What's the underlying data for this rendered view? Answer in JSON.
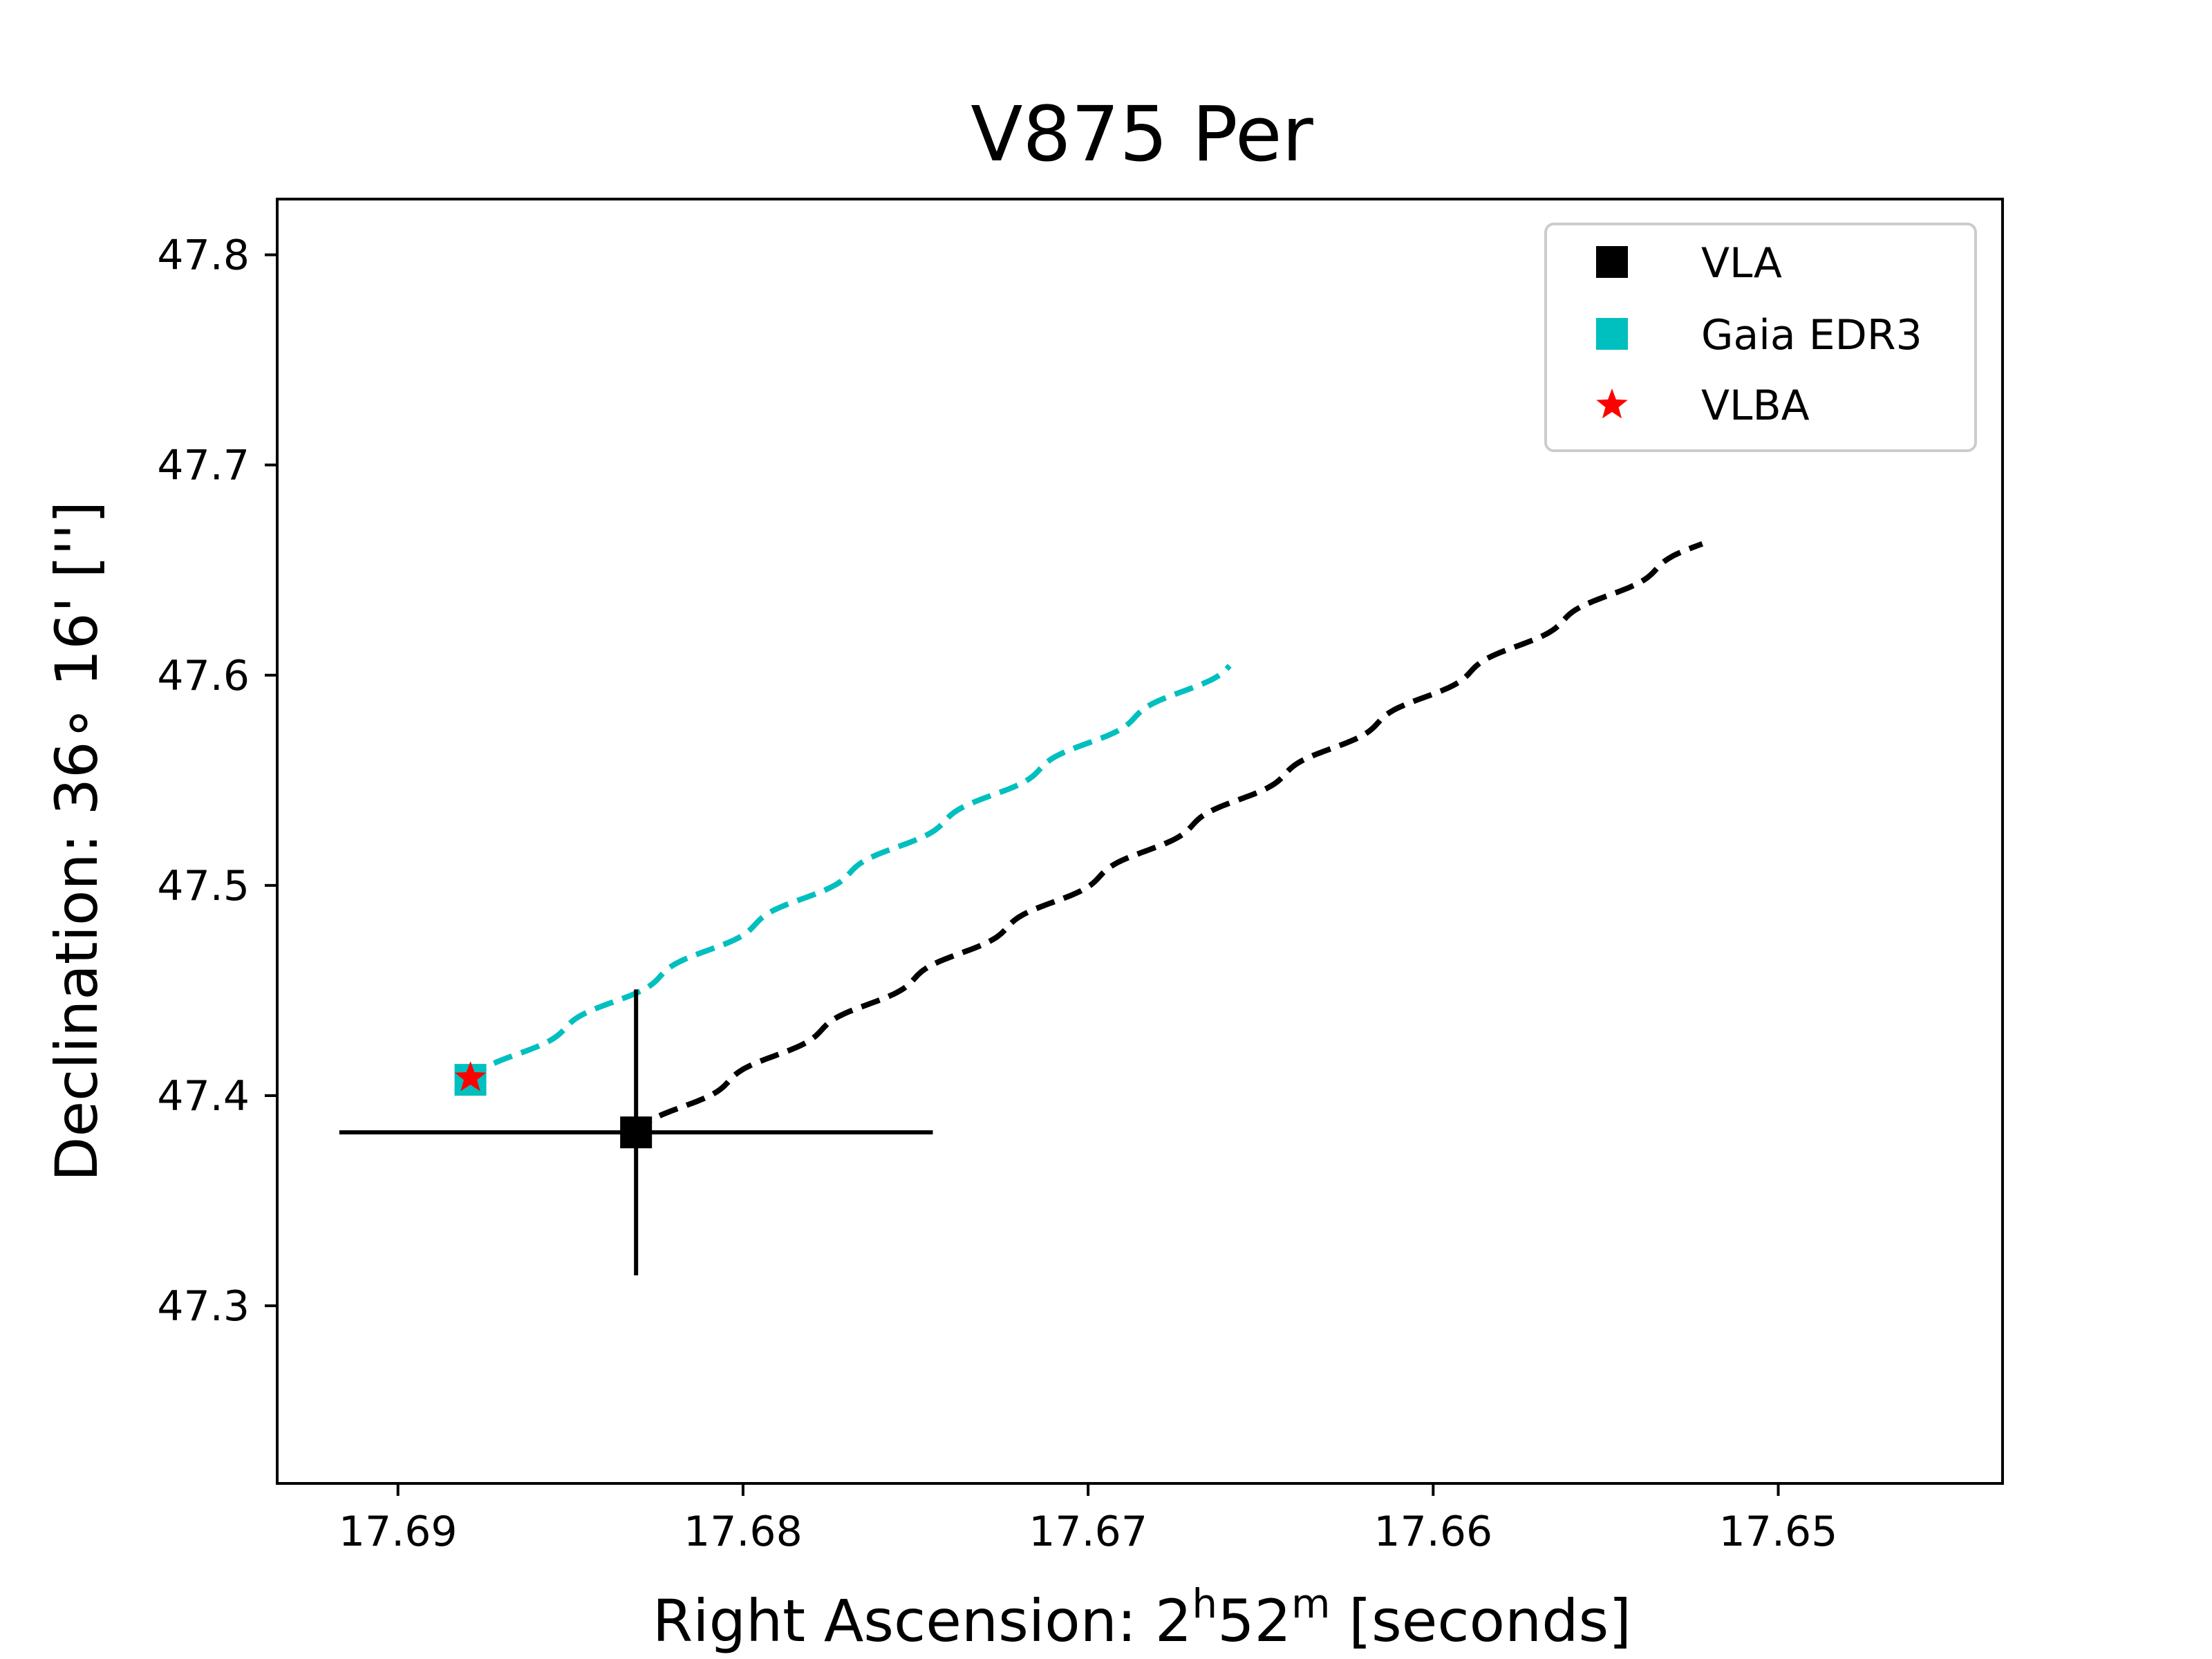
{
  "chart_data": {
    "type": "scatter",
    "title": "V875 Per",
    "xlabel": {
      "prefix": "Right Ascension: 2",
      "sup1": "h",
      "mid": "52",
      "sup2": "m",
      "suffix": " [seconds]"
    },
    "ylabel": "Declination: 36∘ 16' ['']",
    "xlim": [
      17.6935,
      17.6435
    ],
    "ylim": [
      47.2155,
      47.8265
    ],
    "x_ticks": [
      17.69,
      17.68,
      17.67,
      17.66,
      17.65
    ],
    "x_tick_labels": [
      "17.69",
      "17.68",
      "17.67",
      "17.66",
      "17.65"
    ],
    "y_ticks": [
      47.3,
      47.4,
      47.5,
      47.6,
      47.7,
      47.8
    ],
    "y_tick_labels": [
      "47.3",
      "47.4",
      "47.5",
      "47.6",
      "47.7",
      "47.8"
    ],
    "grid": false,
    "legend_position": "top-right",
    "legend": [
      {
        "label": "VLA",
        "marker": "square",
        "color": "#000000"
      },
      {
        "label": "Gaia EDR3",
        "marker": "square",
        "color": "#00bfbf"
      },
      {
        "label": "VLBA",
        "marker": "star",
        "color": "#ff0000"
      }
    ],
    "points": [
      {
        "series": "VLA",
        "x": 17.6831,
        "y": 47.3825,
        "x_err": 0.0086,
        "y_err": 0.068,
        "color": "#000000",
        "marker": "square"
      },
      {
        "series": "Gaia EDR3",
        "x": 17.6879,
        "y": 47.4075,
        "color": "#00bfbf",
        "marker": "square"
      },
      {
        "series": "VLBA",
        "x": 17.6879,
        "y": 47.4085,
        "color": "#ff0000",
        "marker": "star"
      }
    ],
    "tracks": [
      {
        "series": "VLA",
        "color": "#000000",
        "style": "dashed",
        "start": [
          17.6831,
          47.3825
        ],
        "end": [
          17.6522,
          47.6625
        ],
        "wiggles": 11.5,
        "amplitude": 0.0009
      },
      {
        "series": "Gaia EDR3",
        "color": "#00bfbf",
        "style": "dashed",
        "start": [
          17.6879,
          47.4075
        ],
        "end": [
          17.6659,
          47.6045
        ],
        "wiggles": 8,
        "amplitude": 0.0009
      }
    ]
  }
}
